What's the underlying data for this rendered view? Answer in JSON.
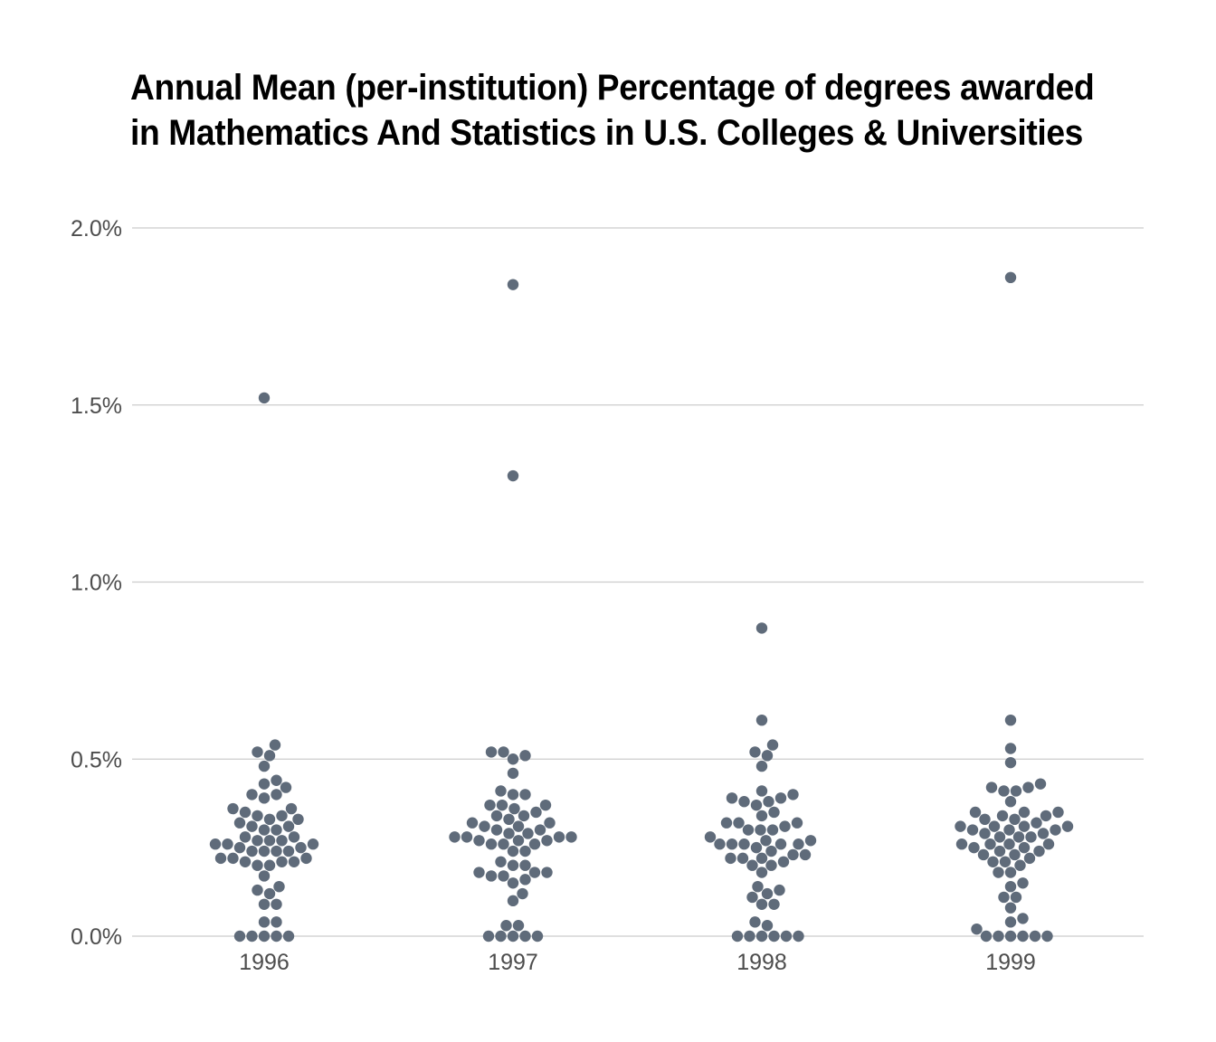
{
  "title_lines": [
    "Annual Mean (per-institution) Percentage of degrees awarded",
    "in Mathematics And Statistics in U.S. Colleges & Universities"
  ],
  "chart_data": {
    "type": "scatter",
    "subtype": "beeswarm",
    "title": "Annual Mean (per-institution) Percentage of degrees awarded in Mathematics And Statistics in U.S. Colleges & Universities",
    "xlabel": "",
    "ylabel": "",
    "categories": [
      "1996",
      "1997",
      "1998",
      "1999"
    ],
    "ylim": [
      0,
      2.0
    ],
    "yticks": [
      0,
      0.5,
      1.0,
      1.5,
      2.0
    ],
    "ytick_labels": [
      "0.0%",
      "0.5%",
      "1.0%",
      "1.5%",
      "2.0%"
    ],
    "grid": "horizontal",
    "legend": "none",
    "point_color": "#5f6b7a",
    "series": [
      {
        "category": "1996",
        "values": [
          1.52,
          0.54,
          0.52,
          0.51,
          0.48,
          0.44,
          0.43,
          0.42,
          0.4,
          0.4,
          0.39,
          0.36,
          0.36,
          0.35,
          0.34,
          0.34,
          0.33,
          0.33,
          0.32,
          0.31,
          0.31,
          0.3,
          0.3,
          0.28,
          0.28,
          0.27,
          0.27,
          0.27,
          0.26,
          0.26,
          0.26,
          0.25,
          0.25,
          0.24,
          0.24,
          0.24,
          0.24,
          0.22,
          0.22,
          0.22,
          0.21,
          0.21,
          0.21,
          0.2,
          0.2,
          0.17,
          0.14,
          0.13,
          0.12,
          0.09,
          0.09,
          0.04,
          0.04,
          0,
          0,
          0,
          0,
          0
        ]
      },
      {
        "category": "1997",
        "values": [
          1.84,
          1.3,
          0.52,
          0.52,
          0.51,
          0.5,
          0.46,
          0.41,
          0.4,
          0.4,
          0.37,
          0.37,
          0.37,
          0.36,
          0.35,
          0.34,
          0.34,
          0.33,
          0.32,
          0.32,
          0.31,
          0.31,
          0.3,
          0.3,
          0.29,
          0.29,
          0.28,
          0.28,
          0.28,
          0.28,
          0.27,
          0.27,
          0.27,
          0.26,
          0.26,
          0.26,
          0.24,
          0.24,
          0.21,
          0.2,
          0.2,
          0.18,
          0.18,
          0.18,
          0.17,
          0.17,
          0.16,
          0.15,
          0.12,
          0.1,
          0.03,
          0.03,
          0,
          0,
          0,
          0,
          0
        ]
      },
      {
        "category": "1998",
        "values": [
          0.87,
          0.61,
          0.54,
          0.52,
          0.51,
          0.48,
          0.41,
          0.4,
          0.39,
          0.39,
          0.38,
          0.38,
          0.37,
          0.35,
          0.34,
          0.32,
          0.32,
          0.32,
          0.31,
          0.3,
          0.3,
          0.3,
          0.28,
          0.27,
          0.27,
          0.26,
          0.26,
          0.26,
          0.26,
          0.26,
          0.25,
          0.24,
          0.23,
          0.23,
          0.22,
          0.22,
          0.22,
          0.21,
          0.2,
          0.2,
          0.18,
          0.14,
          0.13,
          0.12,
          0.11,
          0.09,
          0.09,
          0.04,
          0.03,
          0,
          0,
          0,
          0,
          0,
          0
        ]
      },
      {
        "category": "1999",
        "values": [
          1.86,
          0.61,
          0.53,
          0.49,
          0.43,
          0.42,
          0.42,
          0.41,
          0.41,
          0.38,
          0.35,
          0.35,
          0.35,
          0.34,
          0.34,
          0.33,
          0.33,
          0.32,
          0.31,
          0.31,
          0.31,
          0.31,
          0.3,
          0.3,
          0.3,
          0.29,
          0.29,
          0.28,
          0.28,
          0.28,
          0.26,
          0.26,
          0.26,
          0.26,
          0.25,
          0.25,
          0.24,
          0.24,
          0.23,
          0.23,
          0.22,
          0.21,
          0.21,
          0.2,
          0.18,
          0.18,
          0.15,
          0.14,
          0.11,
          0.11,
          0.08,
          0.05,
          0.04,
          0.02,
          0,
          0,
          0,
          0,
          0,
          0
        ]
      }
    ]
  }
}
